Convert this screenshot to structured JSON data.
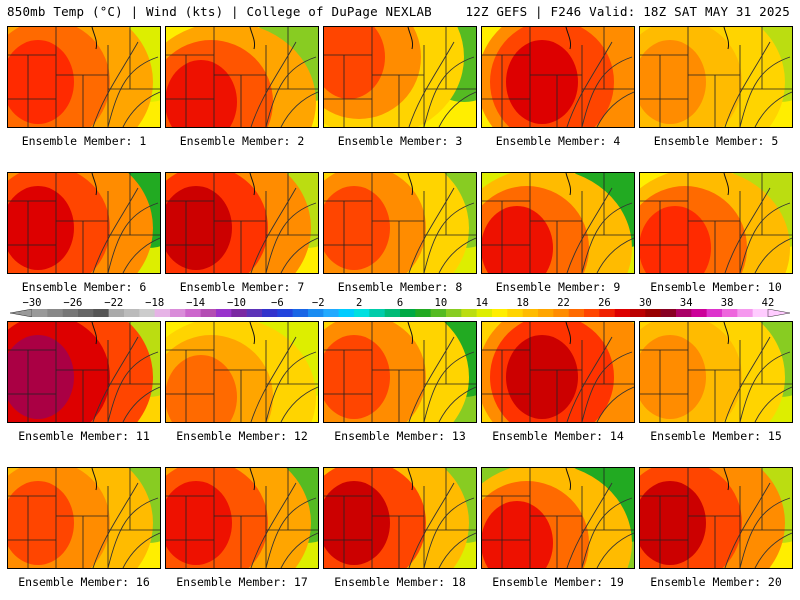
{
  "header": {
    "left": "850mb Temp (°C) | Wind (kts) | College of DuPage NEXLAB",
    "right": "12Z GEFS | F246 Valid: 18Z SAT MAY 31 2025"
  },
  "colorbar": {
    "labels": [
      "−30",
      "−26",
      "−22",
      "−18",
      "−14",
      "−10",
      "−6",
      "−2",
      "2",
      "6",
      "10",
      "14",
      "18",
      "22",
      "26",
      "30",
      "34",
      "38",
      "42"
    ],
    "colors": [
      "#999999",
      "#888888",
      "#777777",
      "#666666",
      "#555555",
      "#aaaaaa",
      "#bbbbbb",
      "#cccccc",
      "#e6b3e6",
      "#d98cd9",
      "#cc66cc",
      "#b34db3",
      "#9933cc",
      "#7a29a3",
      "#5c33b8",
      "#3333cc",
      "#2244dd",
      "#1a66e6",
      "#1a8cf2",
      "#22aaff",
      "#00ccff",
      "#00e0e0",
      "#00ccaa",
      "#00bb77",
      "#00aa44",
      "#22aa22",
      "#55bb22",
      "#88cc22",
      "#bbdd11",
      "#ddee00",
      "#ffee00",
      "#ffd400",
      "#ffbb00",
      "#ffa500",
      "#ff8c00",
      "#ff6a00",
      "#ff4500",
      "#f02000",
      "#dd0000",
      "#bb0000",
      "#990000",
      "#880022",
      "#aa0066",
      "#cc0099",
      "#dd33cc",
      "#ee66dd",
      "#f599ee",
      "#ffccff"
    ]
  },
  "panel_labels": [
    "Ensemble Member: 1",
    "Ensemble Member: 2",
    "Ensemble Member: 3",
    "Ensemble Member: 4",
    "Ensemble Member: 5",
    "Ensemble Member: 6",
    "Ensemble Member: 7",
    "Ensemble Member: 8",
    "Ensemble Member: 9",
    "Ensemble Member: 10",
    "Ensemble Member: 11",
    "Ensemble Member: 12",
    "Ensemble Member: 13",
    "Ensemble Member: 14",
    "Ensemble Member: 15",
    "Ensemble Member: 16",
    "Ensemble Member: 17",
    "Ensemble Member: 18",
    "Ensemble Member: 19",
    "Ensemble Member: 20"
  ],
  "panels": [
    {
      "heat": "#ff2a00",
      "warm": "#ff6a00",
      "mid": "#ffa500",
      "cool": "#ffee00",
      "green": "#ddee00",
      "hot_side": "west"
    },
    {
      "heat": "#ee1100",
      "warm": "#ff5500",
      "mid": "#ffa500",
      "cool": "#ffee00",
      "green": "#88cc22",
      "hot_side": "southwest"
    },
    {
      "heat": "#ff4500",
      "warm": "#ff8c00",
      "mid": "#ffd400",
      "cool": "#ffee00",
      "green": "#55bb22",
      "hot_side": "northwest"
    },
    {
      "heat": "#dd0000",
      "warm": "#ff4500",
      "mid": "#ff8c00",
      "cool": "#ffee00",
      "green": "#bbdd11",
      "hot_side": "center"
    },
    {
      "heat": "#ff8c00",
      "warm": "#ffbb00",
      "mid": "#ffd400",
      "cool": "#ffee00",
      "green": "#bbdd11",
      "hot_side": "west"
    },
    {
      "heat": "#dd0000",
      "warm": "#ff4500",
      "mid": "#ff8c00",
      "cool": "#ddee00",
      "green": "#22aa22",
      "hot_side": "west"
    },
    {
      "heat": "#cc0000",
      "warm": "#ff3300",
      "mid": "#ff8c00",
      "cool": "#ffee00",
      "green": "#bbdd11",
      "hot_side": "west"
    },
    {
      "heat": "#ff4500",
      "warm": "#ff8c00",
      "mid": "#ffd400",
      "cool": "#ddee00",
      "green": "#88cc22",
      "hot_side": "west"
    },
    {
      "heat": "#ee1100",
      "warm": "#ff6a00",
      "mid": "#ffbb00",
      "cool": "#ddee00",
      "green": "#22aa22",
      "hot_side": "southwest"
    },
    {
      "heat": "#ff2a00",
      "warm": "#ff6a00",
      "mid": "#ffbb00",
      "cool": "#ffee00",
      "green": "#bbdd11",
      "hot_side": "southwest"
    },
    {
      "heat": "#aa0044",
      "warm": "#dd0000",
      "mid": "#ff4500",
      "cool": "#ffd400",
      "green": "#bbdd11",
      "hot_side": "west"
    },
    {
      "heat": "#ff6a00",
      "warm": "#ffa500",
      "mid": "#ffd400",
      "cool": "#ffee00",
      "green": "#ddee00",
      "hot_side": "southwest"
    },
    {
      "heat": "#ff4500",
      "warm": "#ff8c00",
      "mid": "#ffd400",
      "cool": "#88cc22",
      "green": "#22aa22",
      "hot_side": "west"
    },
    {
      "heat": "#cc0000",
      "warm": "#ff3300",
      "mid": "#ff8c00",
      "cool": "#ffd400",
      "green": "#ddee00",
      "hot_side": "center"
    },
    {
      "heat": "#ff8c00",
      "warm": "#ffbb00",
      "mid": "#ffd400",
      "cool": "#ddee00",
      "green": "#88cc22",
      "hot_side": "west"
    },
    {
      "heat": "#ff4500",
      "warm": "#ff8c00",
      "mid": "#ffbb00",
      "cool": "#ffee00",
      "green": "#88cc22",
      "hot_side": "west"
    },
    {
      "heat": "#ee1100",
      "warm": "#ff5500",
      "mid": "#ffa500",
      "cool": "#ddee00",
      "green": "#55bb22",
      "hot_side": "west"
    },
    {
      "heat": "#cc0000",
      "warm": "#ff4500",
      "mid": "#ffbb00",
      "cool": "#ddee00",
      "green": "#88cc22",
      "hot_side": "west"
    },
    {
      "heat": "#ee1100",
      "warm": "#ff6a00",
      "mid": "#ffbb00",
      "cool": "#88cc22",
      "green": "#22aa22",
      "hot_side": "southwest"
    },
    {
      "heat": "#cc0000",
      "warm": "#ff4500",
      "mid": "#ff8c00",
      "cool": "#ffee00",
      "green": "#bbdd11",
      "hot_side": "west"
    }
  ]
}
